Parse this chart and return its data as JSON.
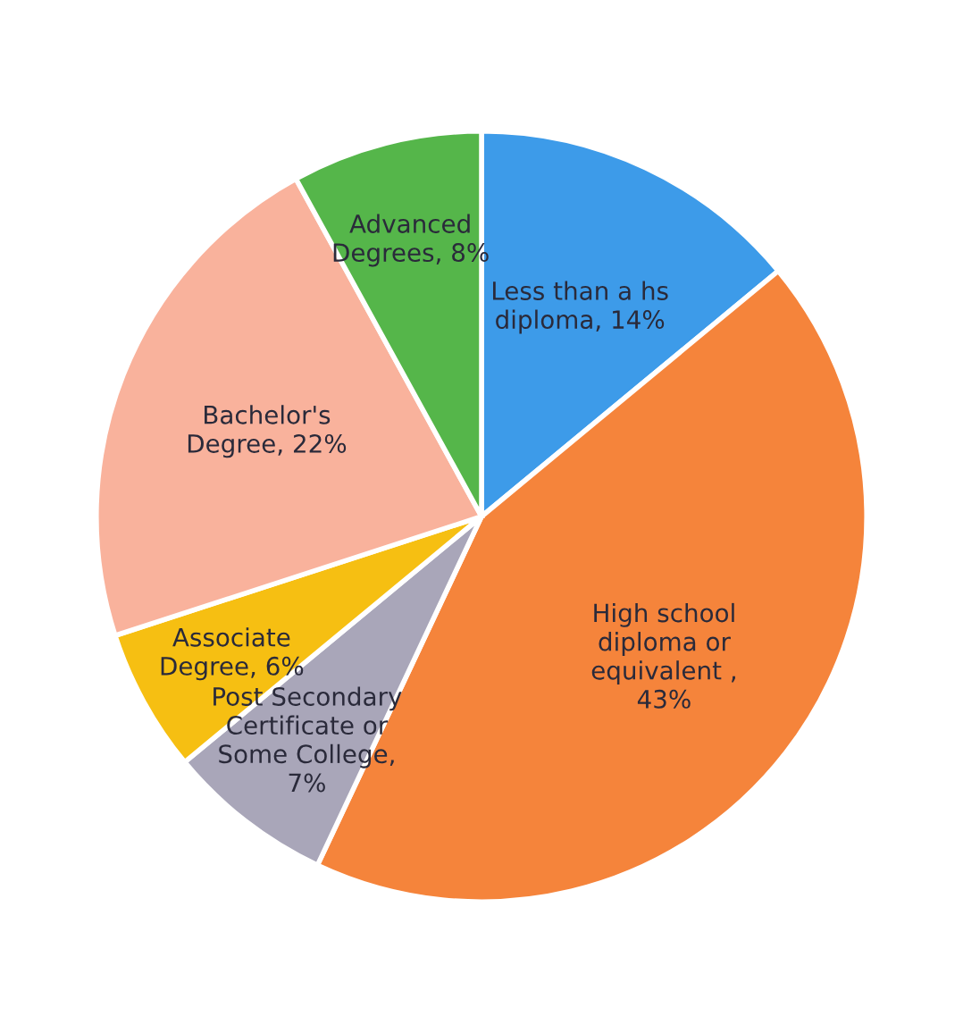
{
  "chart_data": {
    "type": "pie",
    "categories": [
      "Less than a hs diploma, 14%",
      "High school diploma or equivalent , 43%",
      "Post Secondary Certificate or Some College, 7%",
      "Associate Degree, 6%",
      "Bachelor's Degree, 22%",
      "Advanced Degrees, 8%"
    ],
    "values": [
      14,
      43,
      7,
      6,
      22,
      8
    ],
    "colors": [
      "#3d9be9",
      "#f5843b",
      "#a9a6b9",
      "#f6bf12",
      "#f9b29c",
      "#55b64a"
    ],
    "legend": false
  }
}
